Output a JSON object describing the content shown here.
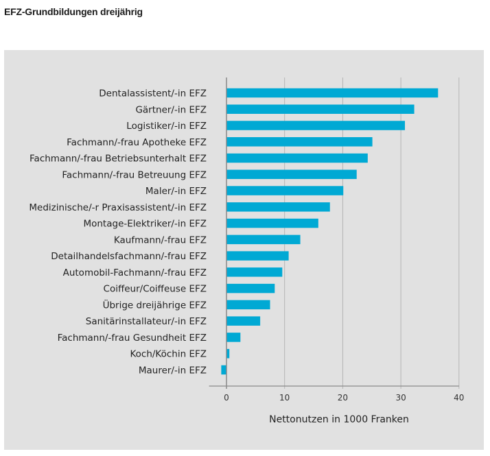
{
  "header": {
    "title": "EFZ-Grundbildungen dreijährig"
  },
  "chart_data": {
    "type": "bar",
    "orientation": "horizontal",
    "title": "EFZ-Grundbildungen dreijährig",
    "xlabel": "Nettonutzen in 1000 Franken",
    "ylabel": "",
    "xlim": [
      -3,
      40
    ],
    "xticks": [
      0,
      10,
      20,
      30,
      40
    ],
    "grid": true,
    "bar_color": "#00a9d4",
    "background_color": "#e1e1e1",
    "categories": [
      "Dentalassistent/-in EFZ",
      "Gärtner/-in EFZ",
      "Logistiker/-in EFZ",
      "Fachmann/-frau Apotheke EFZ",
      "Fachmann/-frau Betriebsunterhalt EFZ",
      "Fachmann/-frau Betreuung EFZ",
      "Maler/-in EFZ",
      "Medizinische/-r Praxisassistent/-in EFZ",
      "Montage-Elektriker/-in EFZ",
      "Kaufmann/-frau EFZ",
      "Detailhandelsfachmann/-frau EFZ",
      "Automobil-Fachmann/-frau EFZ",
      "Coiffeur/Coiffeuse EFZ",
      "Übrige dreijährige EFZ",
      "Sanitärinstallateur/-in EFZ",
      "Fachmann/-frau Gesundheit EFZ",
      "Koch/Köchin EFZ",
      "Maurer/-in EFZ"
    ],
    "values": [
      36.4,
      32.3,
      30.7,
      25.1,
      24.3,
      22.4,
      20.1,
      17.8,
      15.8,
      12.7,
      10.7,
      9.6,
      8.3,
      7.5,
      5.8,
      2.4,
      0.5,
      -0.9
    ]
  }
}
